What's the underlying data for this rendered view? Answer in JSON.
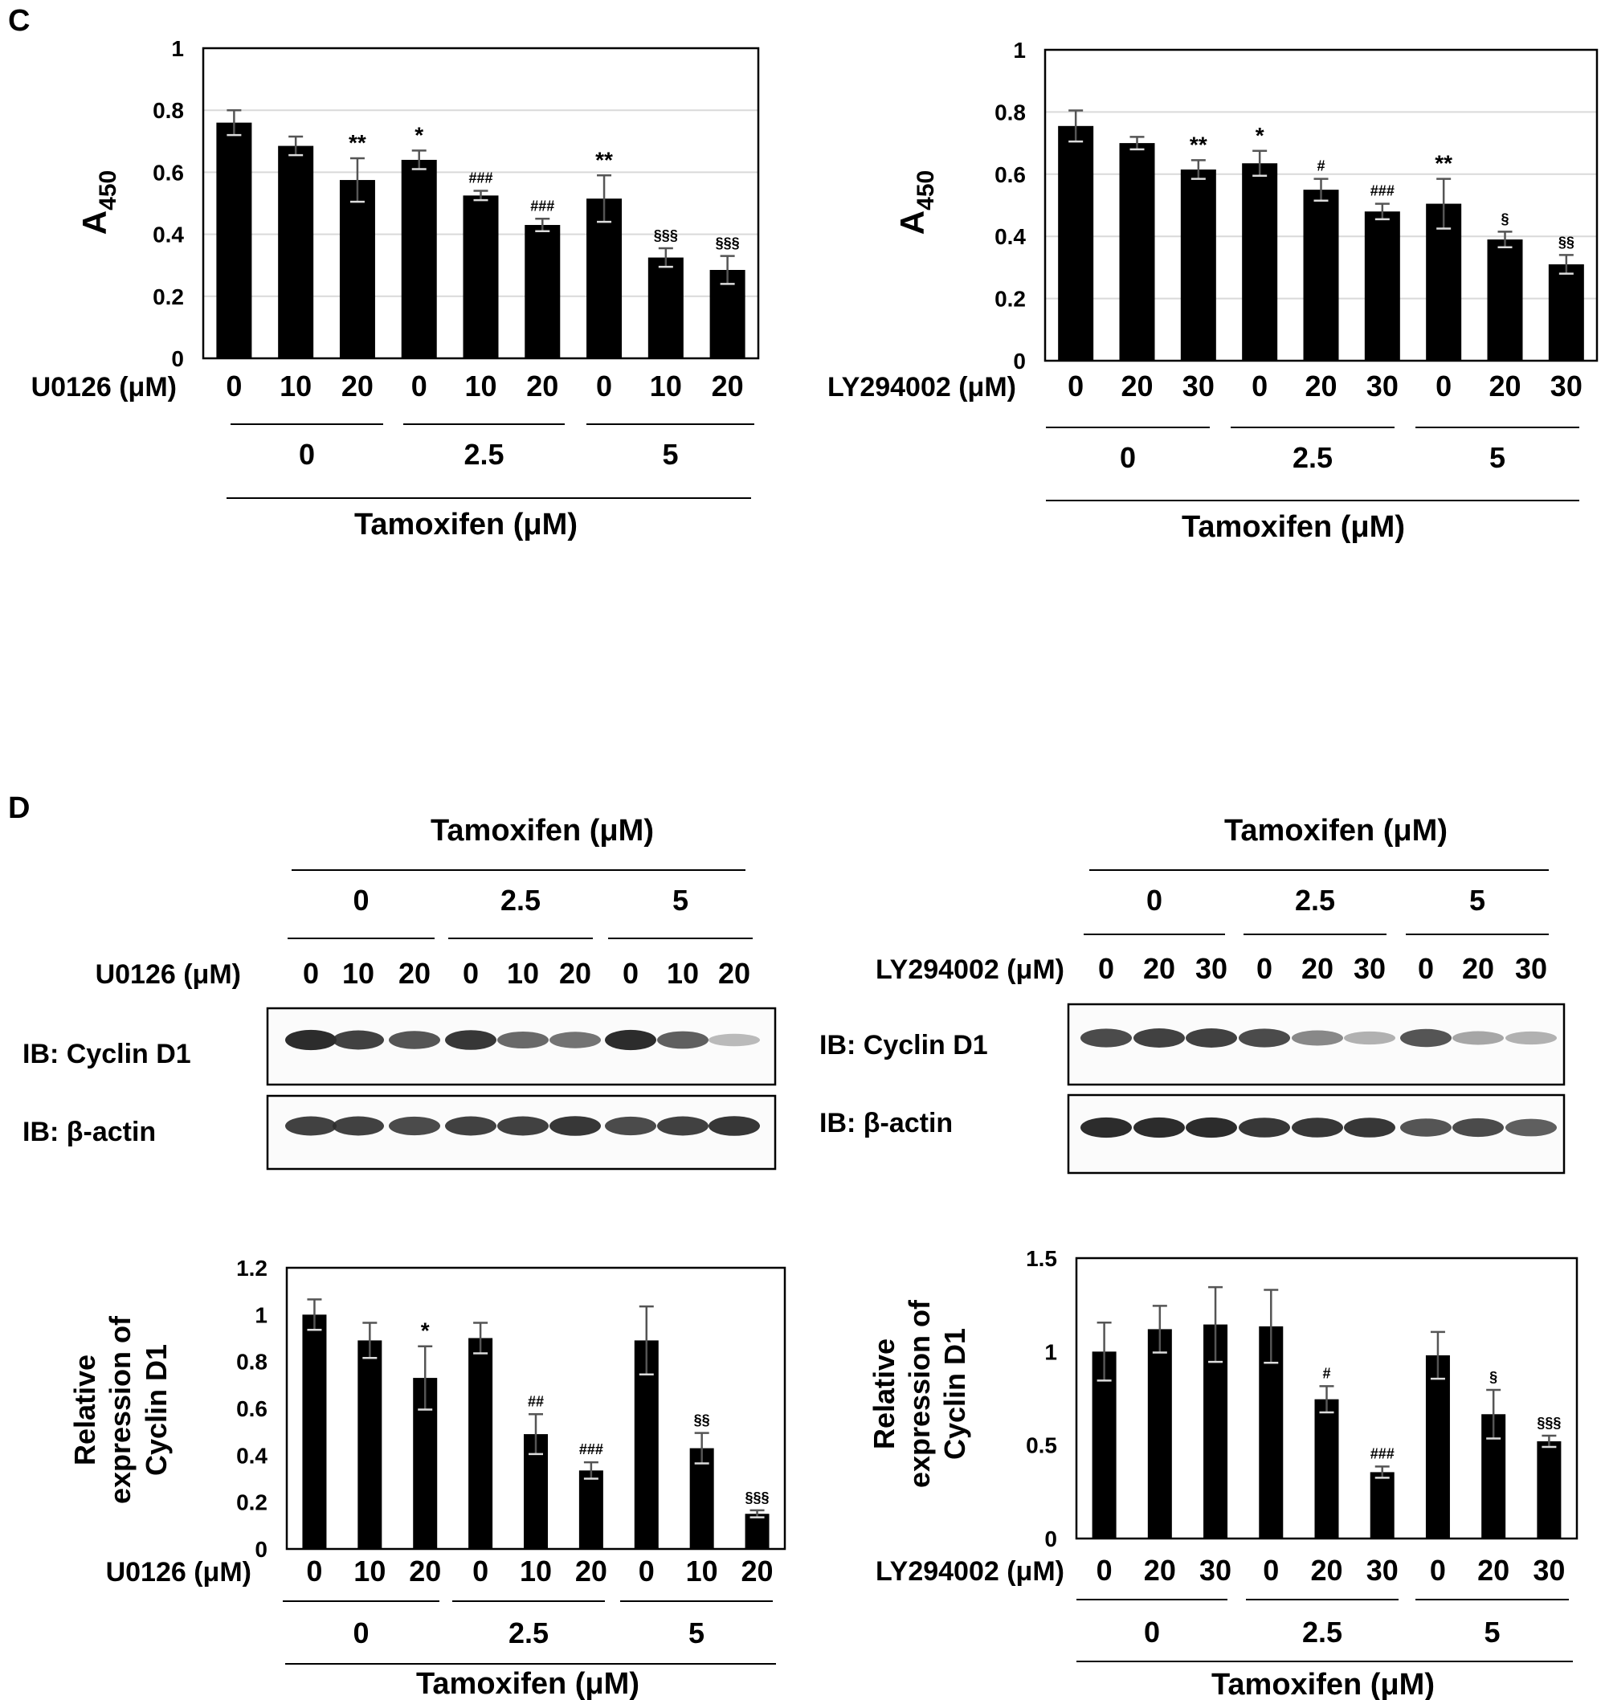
{
  "colors": {
    "bar": "#000000",
    "error": "#555555",
    "grid": "#d9d9d9",
    "band": "#1a1a1a",
    "frame": "#000000"
  },
  "panels": {
    "C": {
      "label": "C"
    },
    "D": {
      "label": "D"
    }
  },
  "tamoxifen_label": "Tamoxifen (μM)",
  "tamoxifen_groups": [
    "0",
    "2.5",
    "5"
  ],
  "chart_data": [
    {
      "id": "c_left",
      "type": "bar",
      "panel": "C",
      "ylabel": "A",
      "ylabel_sub": "450",
      "ylim": [
        0,
        1
      ],
      "yticks": [
        "0",
        "0.2",
        "0.4",
        "0.6",
        "0.8",
        "1"
      ],
      "ytick_values": [
        0,
        0.2,
        0.4,
        0.6,
        0.8,
        1
      ],
      "grid": true,
      "inhibitor_label": "U0126 (μM)",
      "categories": [
        "0",
        "10",
        "20",
        "0",
        "10",
        "20",
        "0",
        "10",
        "20"
      ],
      "values": [
        0.76,
        0.685,
        0.575,
        0.64,
        0.525,
        0.43,
        0.515,
        0.325,
        0.285
      ],
      "errors": [
        0.04,
        0.03,
        0.07,
        0.03,
        0.015,
        0.02,
        0.075,
        0.03,
        0.045
      ],
      "annotations": [
        "",
        "",
        "**",
        "*",
        "###",
        "###",
        "**",
        "§§§",
        "§§§"
      ],
      "groups": [
        "0",
        "2.5",
        "5"
      ],
      "group_label": "Tamoxifen (μM)"
    },
    {
      "id": "c_right",
      "type": "bar",
      "panel": "C",
      "ylabel": "A",
      "ylabel_sub": "450",
      "ylim": [
        0,
        1
      ],
      "yticks": [
        "0",
        "0.2",
        "0.4",
        "0.6",
        "0.8",
        "1"
      ],
      "ytick_values": [
        0,
        0.2,
        0.4,
        0.6,
        0.8,
        1
      ],
      "grid": true,
      "inhibitor_label": "LY294002 (μM)",
      "categories": [
        "0",
        "20",
        "30",
        "0",
        "20",
        "30",
        "0",
        "20",
        "30"
      ],
      "values": [
        0.755,
        0.7,
        0.615,
        0.635,
        0.55,
        0.48,
        0.505,
        0.39,
        0.31
      ],
      "errors": [
        0.05,
        0.02,
        0.03,
        0.04,
        0.035,
        0.025,
        0.08,
        0.025,
        0.03
      ],
      "annotations": [
        "",
        "",
        "**",
        "*",
        "#",
        "###",
        "**",
        "§",
        "§§"
      ],
      "groups": [
        "0",
        "2.5",
        "5"
      ],
      "group_label": "Tamoxifen (μM)"
    },
    {
      "id": "d_left",
      "type": "bar",
      "panel": "D",
      "ylabel_lines": [
        "Relative",
        "expression of",
        "Cyclin D1"
      ],
      "ylim": [
        0,
        1.2
      ],
      "yticks": [
        "0",
        "0.2",
        "0.4",
        "0.6",
        "0.8",
        "1",
        "1.2"
      ],
      "ytick_values": [
        0,
        0.2,
        0.4,
        0.6,
        0.8,
        1,
        1.2
      ],
      "grid": false,
      "inhibitor_label": "U0126 (μM)",
      "categories": [
        "0",
        "10",
        "20",
        "0",
        "10",
        "20",
        "0",
        "10",
        "20"
      ],
      "values": [
        1.0,
        0.89,
        0.73,
        0.9,
        0.49,
        0.335,
        0.89,
        0.43,
        0.15
      ],
      "errors": [
        0.065,
        0.075,
        0.135,
        0.065,
        0.085,
        0.035,
        0.145,
        0.065,
        0.015
      ],
      "annotations": [
        "",
        "",
        "*",
        "",
        "##",
        "###",
        "",
        "§§",
        "§§§"
      ],
      "groups": [
        "0",
        "2.5",
        "5"
      ],
      "group_label": "Tamoxifen (μM)"
    },
    {
      "id": "d_right",
      "type": "bar",
      "panel": "D",
      "ylabel_lines": [
        "Relative",
        "expression of",
        "Cyclin D1"
      ],
      "ylim": [
        0,
        1.5
      ],
      "yticks": [
        "0",
        "0.5",
        "1",
        "1.5"
      ],
      "ytick_values": [
        0,
        0.5,
        1,
        1.5
      ],
      "grid": false,
      "inhibitor_label": "LY294002 (μM)",
      "categories": [
        "0",
        "20",
        "30",
        "0",
        "20",
        "30",
        "0",
        "20",
        "30"
      ],
      "values": [
        1.0,
        1.12,
        1.145,
        1.135,
        0.745,
        0.355,
        0.98,
        0.665,
        0.52
      ],
      "errors": [
        0.155,
        0.125,
        0.2,
        0.195,
        0.07,
        0.03,
        0.125,
        0.13,
        0.03
      ],
      "annotations": [
        "",
        "",
        "",
        "",
        "#",
        "###",
        "",
        "§",
        "§§§"
      ],
      "groups": [
        "0",
        "2.5",
        "5"
      ],
      "group_label": "Tamoxifen (μM)"
    }
  ],
  "blots": [
    {
      "id": "blot_left",
      "inhibitor_label": "U0126 (μM)",
      "lanes": [
        "0",
        "10",
        "20",
        "0",
        "10",
        "20",
        "0",
        "10",
        "20"
      ],
      "groups": [
        "0",
        "2.5",
        "5"
      ],
      "group_label": "Tamoxifen (μM)",
      "rows": [
        {
          "label": "IB: Cyclin D1",
          "intensity": [
            0.95,
            0.85,
            0.75,
            0.9,
            0.65,
            0.6,
            0.95,
            0.7,
            0.25
          ]
        },
        {
          "label": "IB: β-actin",
          "intensity": [
            0.85,
            0.85,
            0.8,
            0.85,
            0.85,
            0.9,
            0.8,
            0.85,
            0.9
          ]
        }
      ]
    },
    {
      "id": "blot_right",
      "inhibitor_label": "LY294002 (μM)",
      "lanes": [
        "0",
        "20",
        "30",
        "0",
        "20",
        "30",
        "0",
        "20",
        "30"
      ],
      "groups": [
        "0",
        "2.5",
        "5"
      ],
      "group_label": "Tamoxifen (μM)",
      "rows": [
        {
          "label": "IB: Cyclin D1",
          "intensity": [
            0.8,
            0.85,
            0.85,
            0.8,
            0.5,
            0.3,
            0.75,
            0.35,
            0.3
          ]
        },
        {
          "label": "IB: β-actin",
          "intensity": [
            0.95,
            0.95,
            0.95,
            0.9,
            0.9,
            0.9,
            0.75,
            0.8,
            0.7
          ]
        }
      ]
    }
  ]
}
